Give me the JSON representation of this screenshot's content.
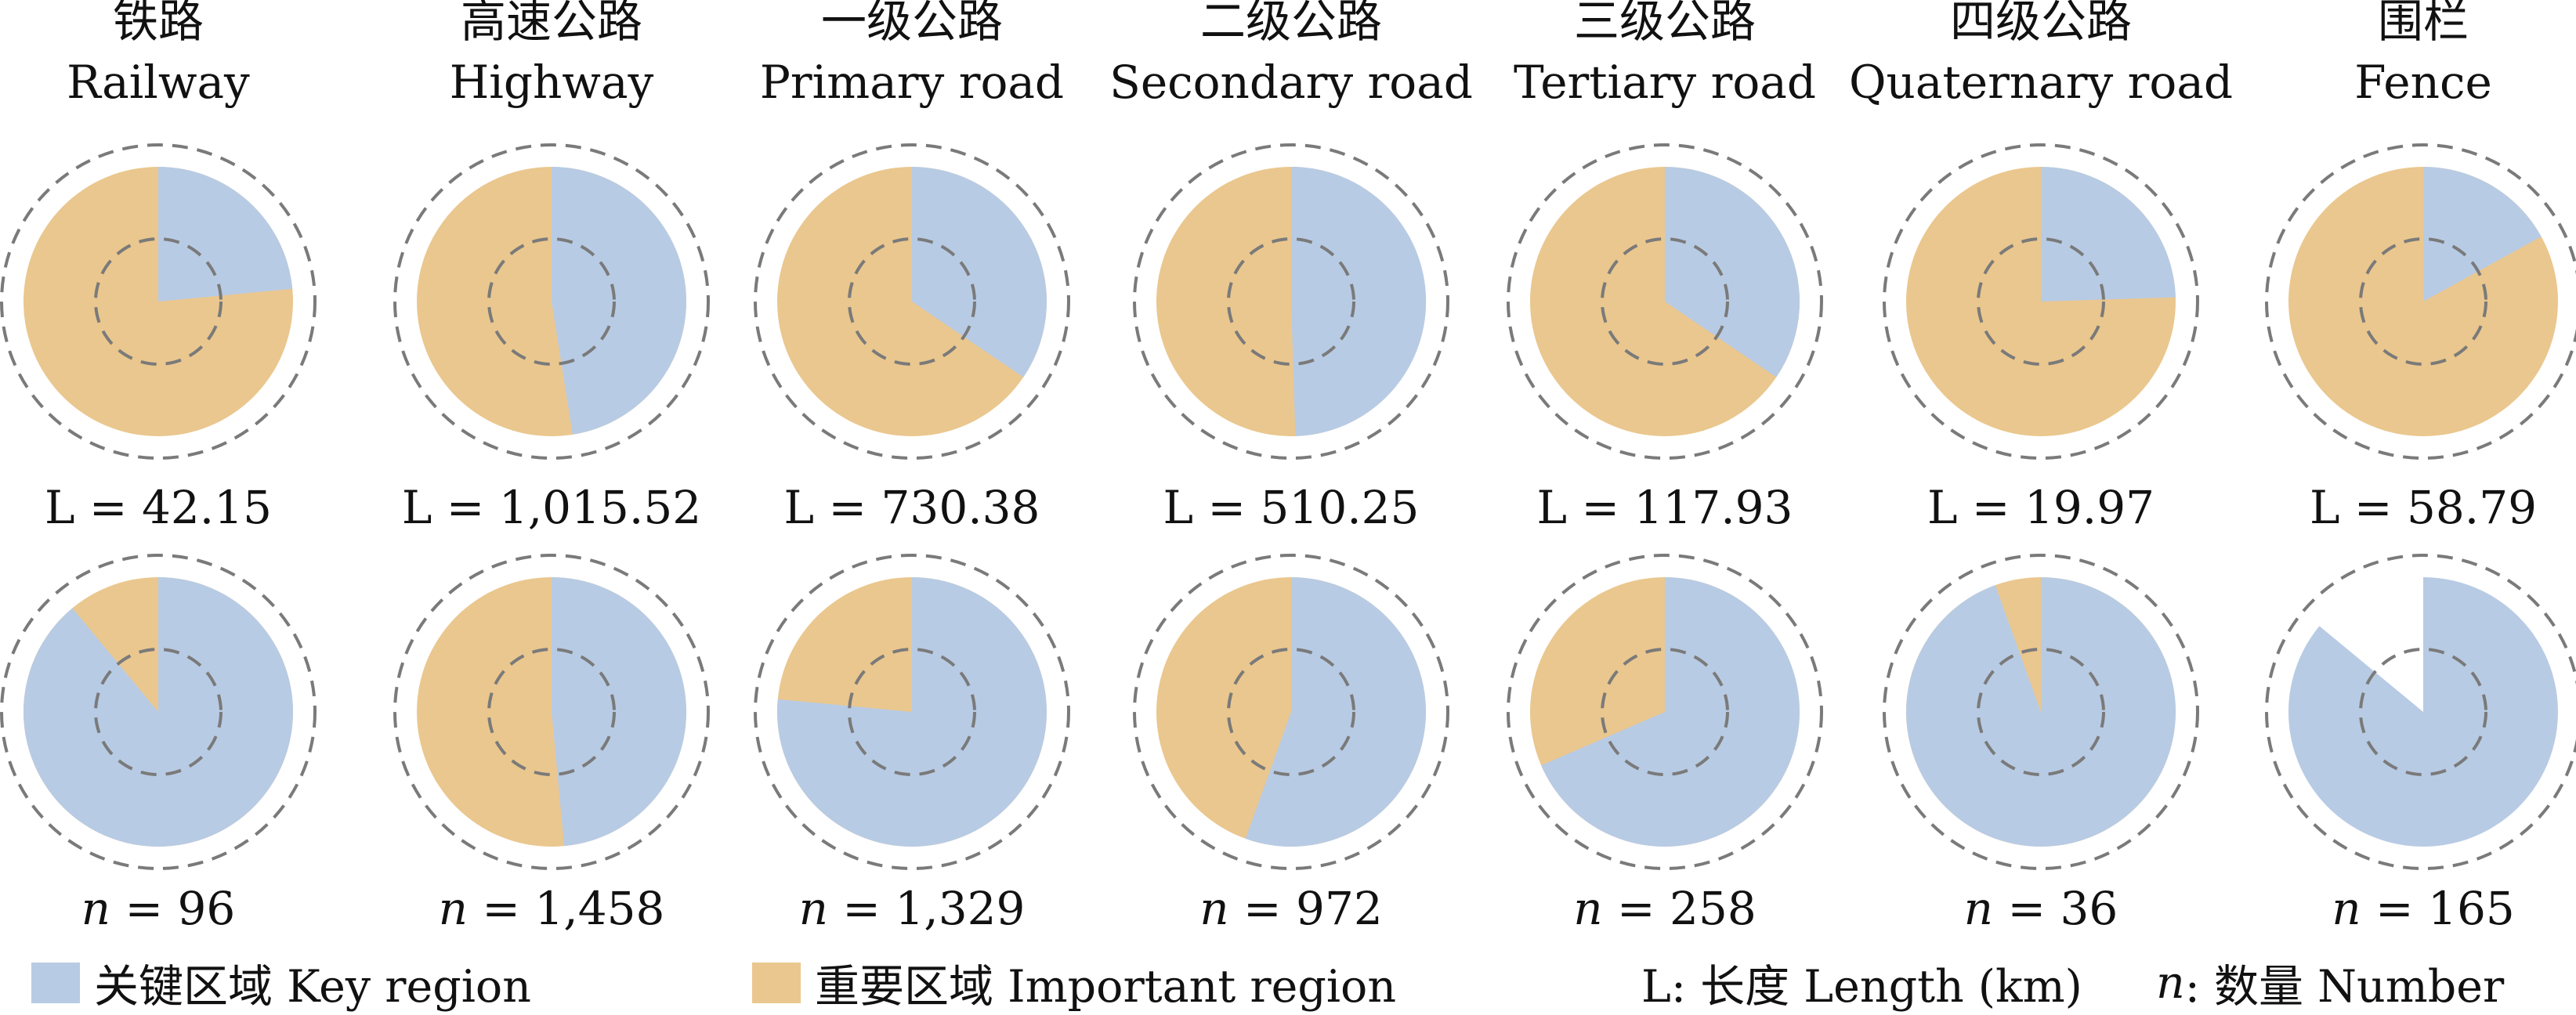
{
  "chart_data": {
    "type": "pie",
    "colors": {
      "key": "#b8cbe4",
      "important": "#eac78e",
      "ring": "#7a7a7a"
    },
    "legend": {
      "key_label": "关键区域 Key region",
      "important_label": "重要区域 Important region",
      "length_note": "L: 长度 Length (km)",
      "count_var": "n",
      "count_note": ": 数量 Number"
    },
    "categories": [
      {
        "zh": "铁路",
        "en": "Railway",
        "length": "L = 42.15",
        "count_var": "n",
        "count": "= 96",
        "length_key_share": 0.235,
        "count_key_share": 0.89
      },
      {
        "zh": "高速公路",
        "en": "Highway",
        "length": "L = 1,015.52",
        "count_var": "n",
        "count": "= 1,458",
        "length_key_share": 0.475,
        "count_key_share": 0.485
      },
      {
        "zh": "一级公路",
        "en": "Primary road",
        "length": "L = 730.38",
        "count_var": "n",
        "count": "= 1,329",
        "length_key_share": 0.345,
        "count_key_share": 0.765
      },
      {
        "zh": "二级公路",
        "en": "Secondary road",
        "length": "L = 510.25",
        "count_var": "n",
        "count": "= 972",
        "length_key_share": 0.495,
        "count_key_share": 0.555
      },
      {
        "zh": "三级公路",
        "en": "Tertiary road",
        "length": "L = 117.93",
        "count_var": "n",
        "count": "= 258",
        "length_key_share": 0.345,
        "count_key_share": 0.685
      },
      {
        "zh": "四级公路",
        "en": "Quaternary road",
        "length": "L = 19.97",
        "count_var": "n",
        "count": "= 36",
        "length_key_share": 0.245,
        "count_key_share": 0.945
      },
      {
        "zh": "围栏",
        "en": "Fence",
        "length": "L = 58.79",
        "count_var": "n",
        "count": "= 165",
        "length_key_share": 0.17,
        "count_key_share": 0.86
      }
    ]
  }
}
